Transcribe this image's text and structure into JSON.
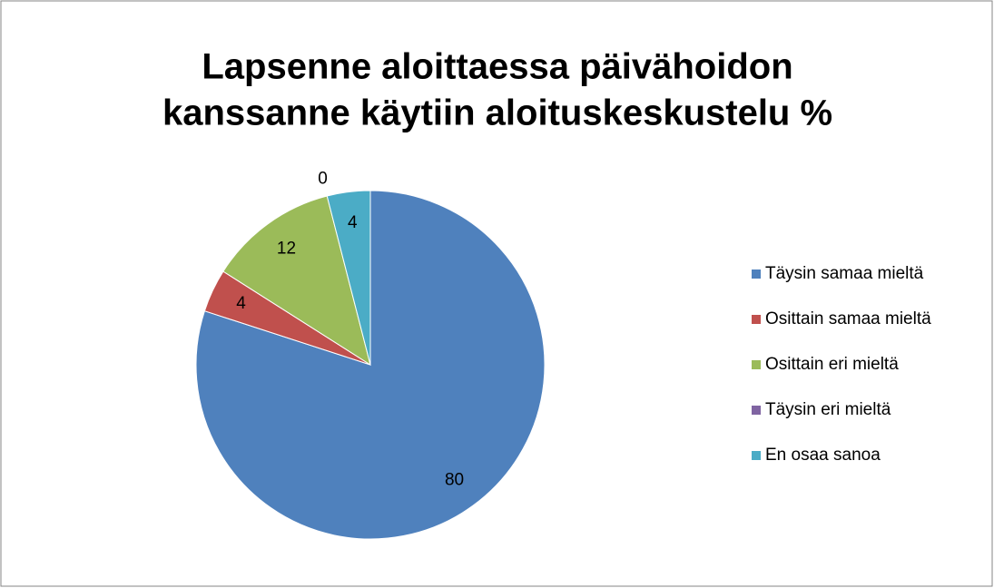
{
  "chart_data": {
    "type": "pie",
    "title": [
      "Lapsenne aloittaessa päivähoidon",
      "kanssanne käytiin aloituskeskustelu %"
    ],
    "categories": [
      "Täysin samaa mieltä",
      "Osittain samaa mieltä",
      "Osittain eri mieltä",
      "Täysin eri mieltä",
      "En osaa sanoa"
    ],
    "values": [
      80,
      4,
      12,
      0,
      4
    ],
    "colors": [
      "#4f81bd",
      "#c0504d",
      "#9bbb59",
      "#8064a2",
      "#4bacc6"
    ],
    "legend": "right"
  }
}
